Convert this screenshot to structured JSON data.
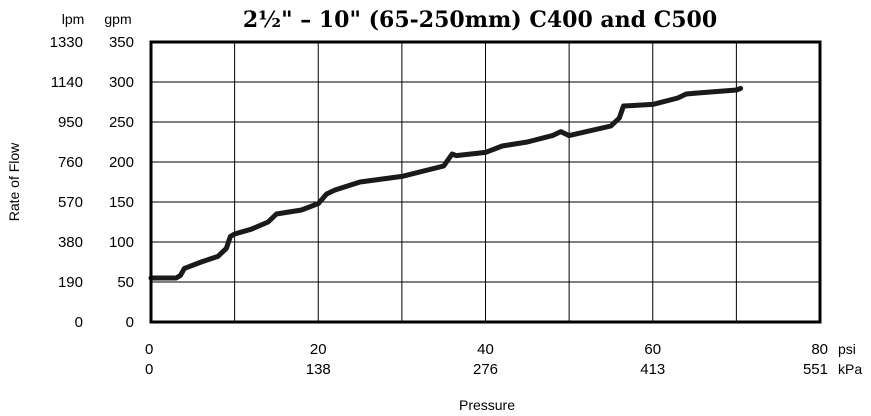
{
  "chart_data": {
    "type": "line",
    "title": "2½\" – 10\" (65-250mm) C400 and C500",
    "xlabel": "Pressure",
    "ylabel": "Rate of Flow",
    "xlim": [
      0,
      80
    ],
    "ylim": [
      0,
      350
    ],
    "grid": true,
    "y_units": [
      "lpm",
      "gpm"
    ],
    "x_units": [
      "psi",
      "kPa"
    ],
    "y_ticks_gpm": [
      0,
      50,
      100,
      150,
      200,
      250,
      300,
      350
    ],
    "y_ticks_lpm": [
      "0",
      "190",
      "380",
      "570",
      "760",
      "950",
      "1140",
      "1330"
    ],
    "x_ticks_psi": [
      0,
      20,
      40,
      60,
      80
    ],
    "x_ticks_kpa": [
      "0",
      "138",
      "276",
      "413",
      "551"
    ],
    "series": [
      {
        "x": [
          0,
          3,
          3.5,
          4,
          6,
          8,
          9,
          9.5,
          10,
          12,
          14,
          15,
          18,
          20,
          21,
          22,
          25,
          30,
          35,
          36,
          36.5,
          40,
          42,
          45,
          48,
          49,
          50,
          55,
          56,
          56.5,
          60,
          63,
          64,
          65,
          70,
          70.5
        ],
        "y": [
          55,
          55,
          58,
          67,
          75,
          82,
          92,
          107,
          110,
          116,
          125,
          135,
          140,
          148,
          160,
          165,
          175,
          182,
          195,
          210,
          208,
          212,
          220,
          225,
          233,
          238,
          233,
          245,
          255,
          270,
          272,
          280,
          285,
          286,
          290,
          292
        ]
      }
    ]
  }
}
